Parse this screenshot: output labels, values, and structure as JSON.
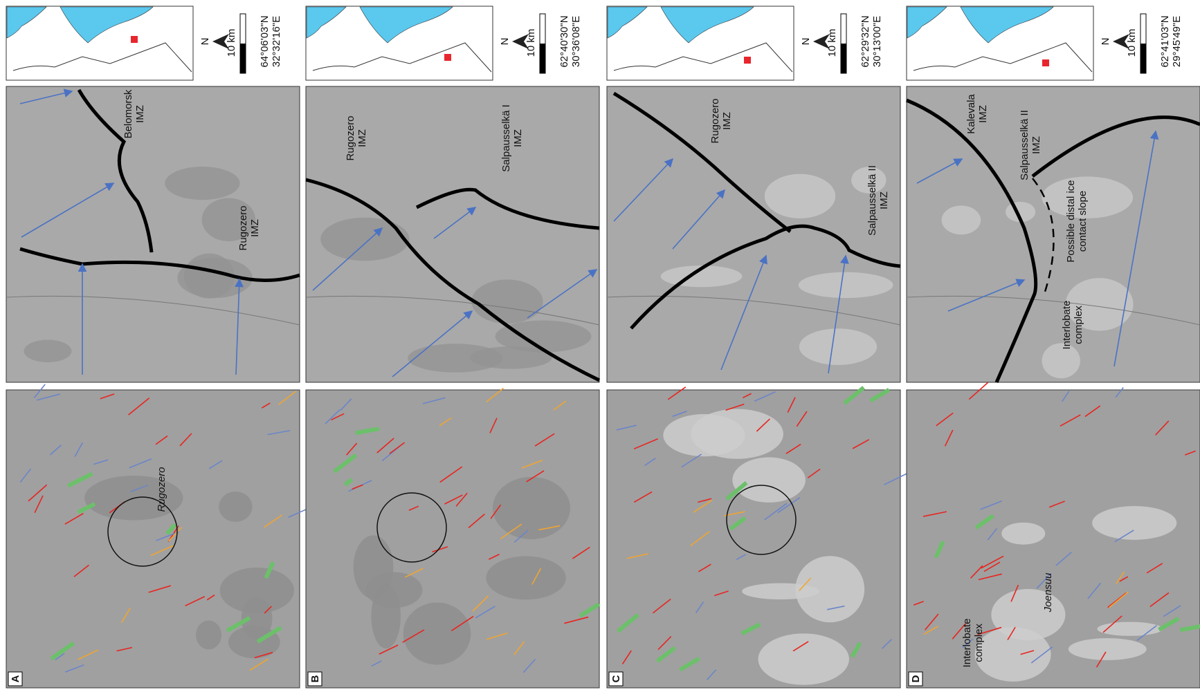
{
  "panels": [
    {
      "label": "A",
      "inset": {
        "north": "N",
        "scale": "10 km",
        "lat": "64°06'03\"N",
        "lon": "32°32'16\"E"
      },
      "zone_labels": [
        [
          "Belomorsk",
          "IMZ"
        ],
        [
          "Rugozero",
          "IMZ"
        ]
      ],
      "map_labels": [
        "Rugozero"
      ]
    },
    {
      "label": "B",
      "inset": {
        "north": "N",
        "scale": "10 km",
        "lat": "62°40'30\"N",
        "lon": "30°36'08\"E"
      },
      "zone_labels": [
        [
          "Rugozero",
          "IMZ"
        ],
        [
          "Salpausselkä I",
          "IMZ"
        ]
      ],
      "map_labels": []
    },
    {
      "label": "C",
      "inset": {
        "north": "N",
        "scale": "10 km",
        "lat": "62°29'32\"N",
        "lon": "30°13'00\"E"
      },
      "zone_labels": [
        [
          "Rugozero",
          "IMZ"
        ],
        [
          "Salpausselkä II",
          "IMZ"
        ]
      ],
      "map_labels": []
    },
    {
      "label": "D",
      "inset": {
        "north": "N",
        "scale": "10 km",
        "lat": "62°41'03\"N",
        "lon": "29°45'49\"E"
      },
      "zone_labels": [
        [
          "Kalevala",
          "IMZ"
        ],
        [
          "Salpausselkä II",
          "IMZ"
        ],
        [
          "Possible distal ice",
          "contact slope"
        ],
        [
          "Interlobate",
          "complex"
        ]
      ],
      "map_labels": [
        "Joensuu",
        [
          "Interlobate",
          "complex"
        ]
      ]
    }
  ]
}
